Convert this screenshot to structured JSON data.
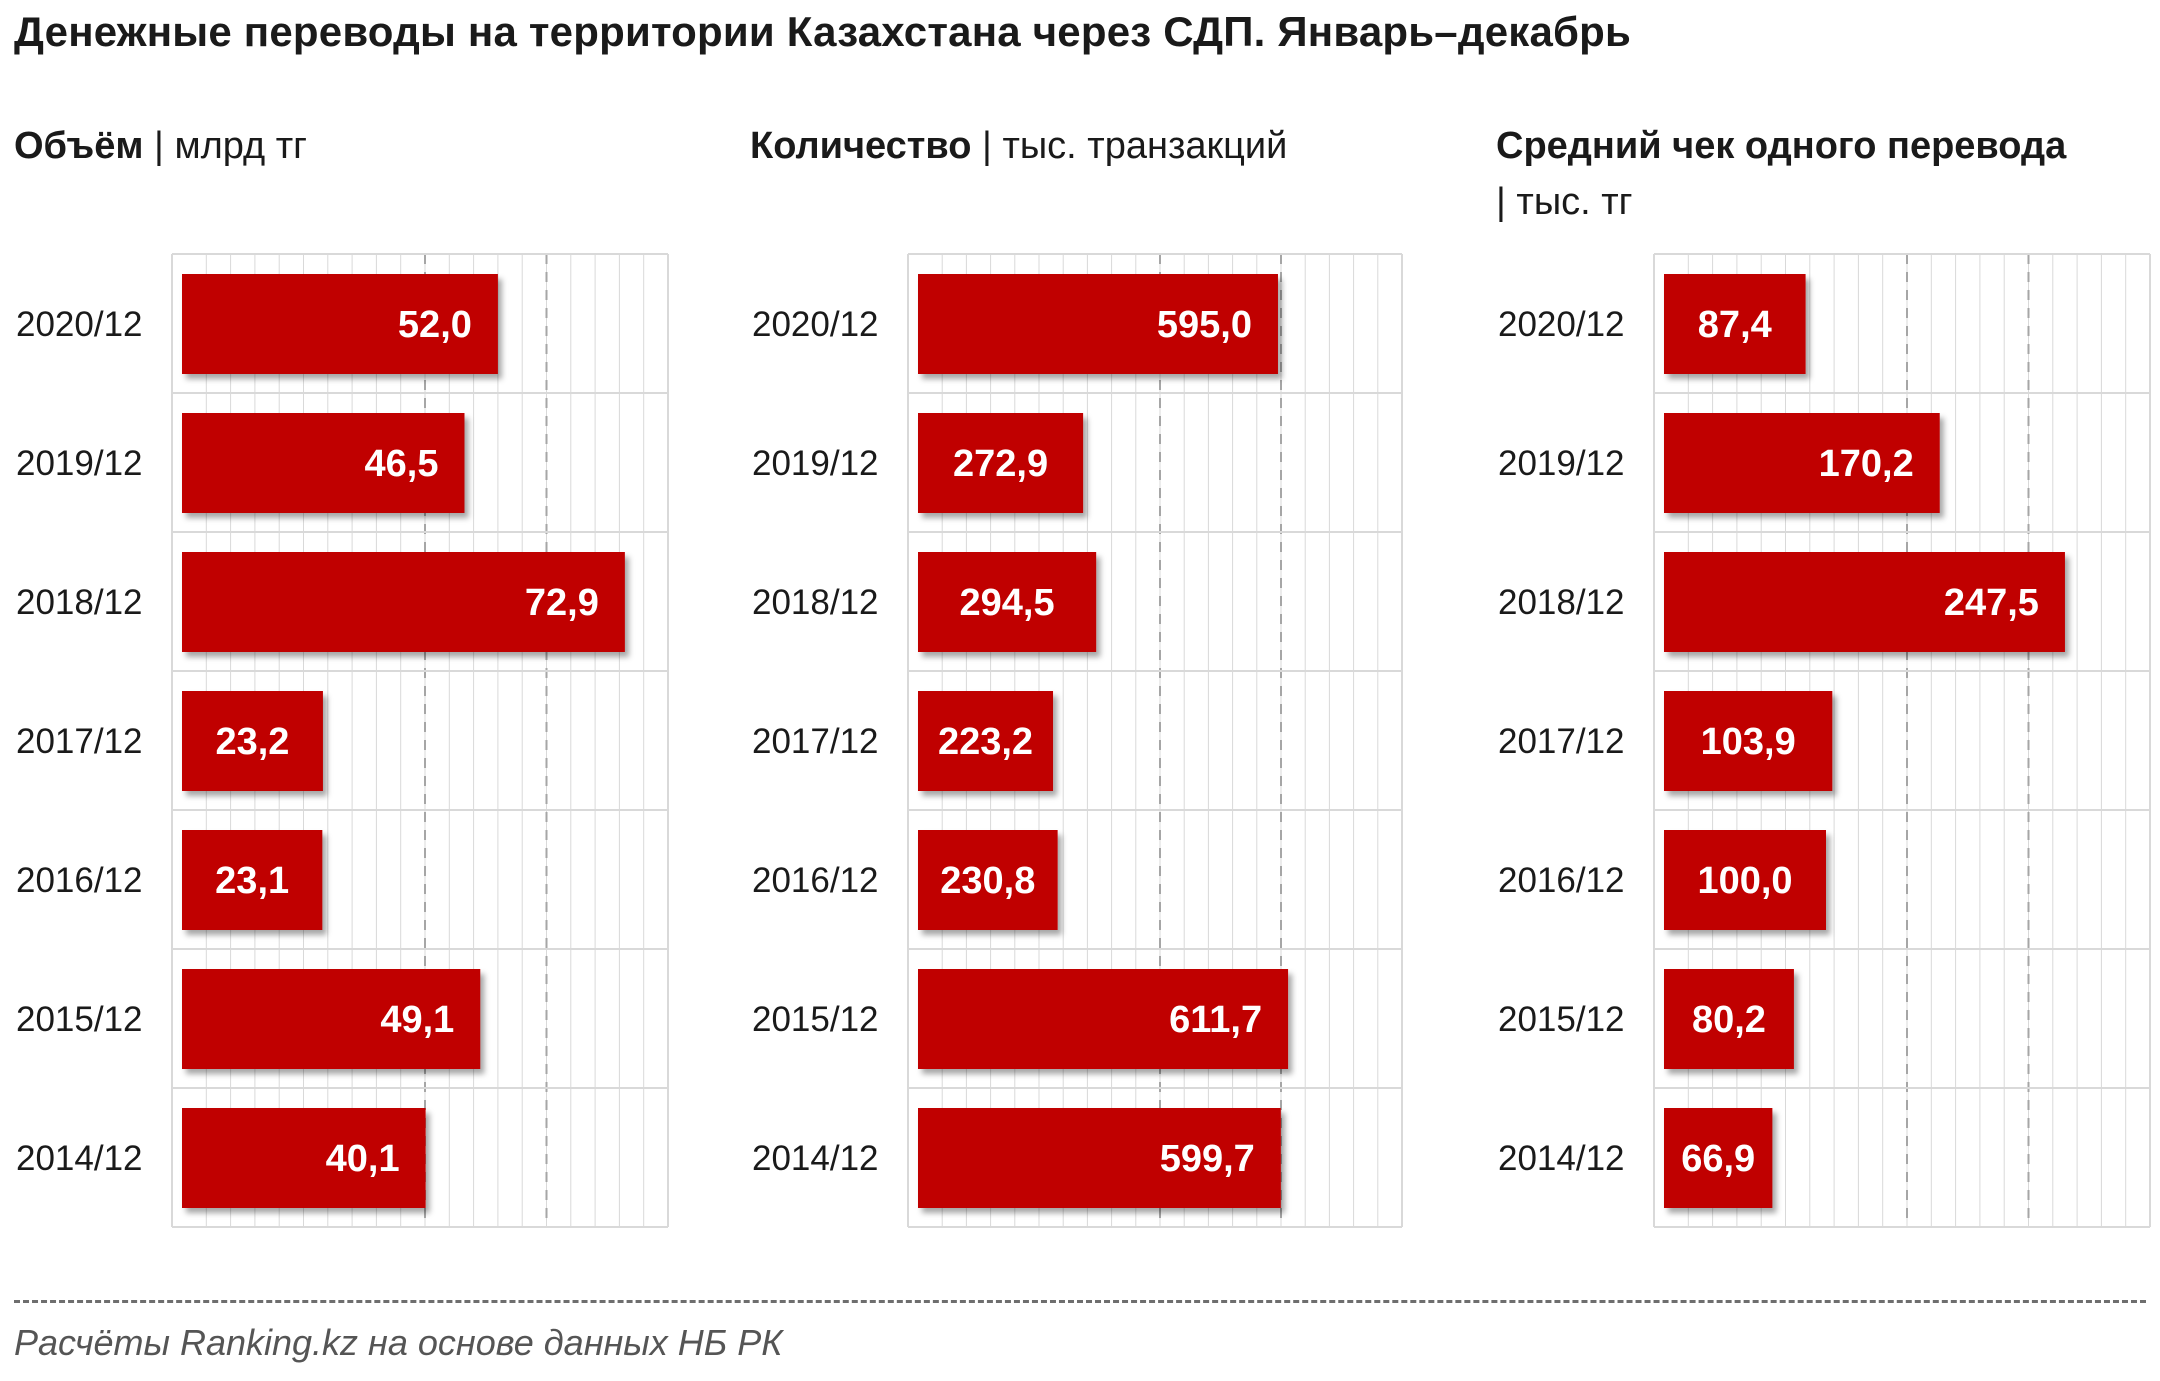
{
  "title": "Денежные переводы на территории Казахстана через СДП. Январь–декабрь",
  "source": "Расчёты Ranking.kz на основе данных НБ РК",
  "colors": {
    "bar": "#c00000",
    "grid": "#d9d9d9",
    "grid_major": "#a6a6a6",
    "text": "#1a1a1a"
  },
  "panels": [
    {
      "title": "Объём",
      "unit": "| млрд тг"
    },
    {
      "title": "Количество",
      "unit": "| тыс. транзакций"
    },
    {
      "title": "Средний чек одного перевода",
      "unit": "| тыс. тг"
    }
  ],
  "chart_data": [
    {
      "type": "bar",
      "orientation": "horizontal",
      "title": "Объём",
      "unit": "млрд тг",
      "categories": [
        "2020/12",
        "2019/12",
        "2018/12",
        "2017/12",
        "2016/12",
        "2015/12",
        "2014/12"
      ],
      "values": [
        52.0,
        46.5,
        72.9,
        23.2,
        23.1,
        49.1,
        40.1
      ],
      "labels": [
        "52,0",
        "46,5",
        "72,9",
        "23,2",
        "23,1",
        "49,1",
        "40,1"
      ],
      "xlim": [
        0,
        80
      ],
      "grid": true
    },
    {
      "type": "bar",
      "orientation": "horizontal",
      "title": "Количество",
      "unit": "тыс. транзакций",
      "categories": [
        "2020/12",
        "2019/12",
        "2018/12",
        "2017/12",
        "2016/12",
        "2015/12",
        "2014/12"
      ],
      "values": [
        595.0,
        272.9,
        294.5,
        223.2,
        230.8,
        611.7,
        599.7
      ],
      "labels": [
        "595,0",
        "272,9",
        "294,5",
        "223,2",
        "230,8",
        "611,7",
        "599,7"
      ],
      "xlim": [
        0,
        800
      ],
      "grid": true
    },
    {
      "type": "bar",
      "orientation": "horizontal",
      "title": "Средний чек одного перевода",
      "unit": "тыс. тг",
      "categories": [
        "2020/12",
        "2019/12",
        "2018/12",
        "2017/12",
        "2016/12",
        "2015/12",
        "2014/12"
      ],
      "values": [
        87.4,
        170.2,
        247.5,
        103.9,
        100.0,
        80.2,
        66.9
      ],
      "labels": [
        "87,4",
        "170,2",
        "247,5",
        "103,9",
        "100,0",
        "80,2",
        "66,9"
      ],
      "xlim": [
        0,
        300
      ],
      "grid": true
    }
  ]
}
